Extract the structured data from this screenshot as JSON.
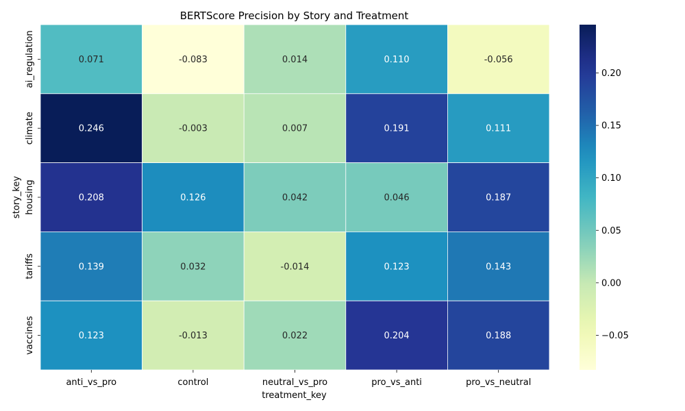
{
  "chart_data": {
    "type": "heatmap",
    "title": "BERTScore Precision by Story and Treatment",
    "xlabel": "treatment_key",
    "ylabel": "story_key",
    "x_categories": [
      "anti_vs_pro",
      "control",
      "neutral_vs_pro",
      "pro_vs_anti",
      "pro_vs_neutral"
    ],
    "y_categories": [
      "ai_regulation",
      "climate",
      "housing",
      "tariffs",
      "vaccines"
    ],
    "values": [
      [
        0.071,
        -0.083,
        0.014,
        0.11,
        -0.056
      ],
      [
        0.246,
        -0.003,
        0.007,
        0.191,
        0.111
      ],
      [
        0.208,
        0.126,
        0.042,
        0.046,
        0.187
      ],
      [
        0.139,
        0.032,
        -0.014,
        0.123,
        0.143
      ],
      [
        0.123,
        -0.013,
        0.022,
        0.204,
        0.188
      ]
    ],
    "value_labels": [
      [
        "0.071",
        "-0.083",
        "0.014",
        "0.110",
        "-0.056"
      ],
      [
        "0.246",
        "-0.003",
        "0.007",
        "0.191",
        "0.111"
      ],
      [
        "0.208",
        "0.126",
        "0.042",
        "0.046",
        "0.187"
      ],
      [
        "0.139",
        "0.032",
        "-0.014",
        "0.123",
        "0.143"
      ],
      [
        "0.123",
        "-0.013",
        "0.022",
        "0.204",
        "0.188"
      ]
    ],
    "colormap": "YlGnBu",
    "vmin": -0.083,
    "vmax": 0.246,
    "colorbar_ticks": [
      -0.05,
      0.0,
      0.05,
      0.1,
      0.15,
      0.2
    ],
    "colorbar_tick_labels": [
      "−0.05",
      "0.00",
      "0.05",
      "0.10",
      "0.15",
      "0.20"
    ],
    "grid": false,
    "colorbar_position": "right"
  }
}
